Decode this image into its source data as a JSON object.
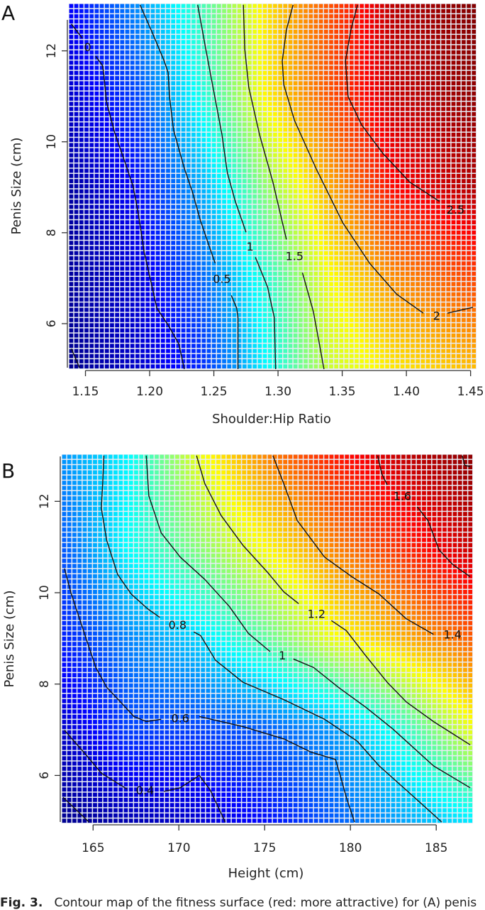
{
  "caption": {
    "fig": "Fig. 3.",
    "text": "Contour map of the fitness surface (red: more attractive) for (A) penis"
  },
  "chart_data": [
    {
      "panel": "A",
      "type": "heatmap",
      "xlabel": "Shoulder:Hip Ratio",
      "ylabel": "Penis Size (cm)",
      "xlim": [
        1.137,
        1.4546
      ],
      "ylim": [
        5.0,
        13.04
      ],
      "xticks": [
        "1.15",
        "1.20",
        "1.25",
        "1.30",
        "1.35",
        "1.40",
        "1.45"
      ],
      "yticks": [
        "6",
        "8",
        "10",
        "12"
      ],
      "color_range": [
        -0.4,
        3.0
      ],
      "colormap": "jet (blue = low, dark red = high)",
      "grid_x": [
        1.137,
        1.19,
        1.24,
        1.29,
        1.34,
        1.39,
        1.455
      ],
      "grid_y": [
        5,
        7,
        9,
        11,
        13
      ],
      "grid_values": [
        [
          -0.35,
          -0.15,
          0.15,
          0.85,
          1.55,
          1.8,
          1.95
        ],
        [
          -0.3,
          -0.1,
          0.35,
          1.0,
          1.7,
          2.1,
          2.35
        ],
        [
          -0.3,
          0.05,
          0.6,
          1.35,
          2.0,
          2.55,
          2.85
        ],
        [
          -0.15,
          0.25,
          0.95,
          1.75,
          2.3,
          2.75,
          2.95
        ],
        [
          0.0,
          0.5,
          1.1,
          1.8,
          2.3,
          2.8,
          3.0
        ]
      ],
      "contours": [
        {
          "level": "0",
          "label_at": [
            1.1517,
            12.09
          ],
          "segments": [
            [
              [
                1.139,
                12.59
              ],
              [
                1.1475,
                12.28
              ]
            ],
            [
              [
                1.158,
                11.88
              ],
              [
                1.1632,
                11.68
              ],
              [
                1.1642,
                11.52
              ],
              [
                1.1663,
                10.89
              ],
              [
                1.1726,
                10.21
              ],
              [
                1.181,
                9.53
              ],
              [
                1.1872,
                9.01
              ],
              [
                1.1914,
                8.38
              ],
              [
                1.1956,
                7.59
              ],
              [
                1.1998,
                7.07
              ],
              [
                1.2056,
                6.34
              ],
              [
                1.2144,
                5.97
              ],
              [
                1.2228,
                5.55
              ],
              [
                1.227,
                5.0
              ]
            ],
            [
              [
                1.139,
                5.45
              ],
              [
                1.1454,
                5.03
              ]
            ]
          ]
        },
        {
          "level": "0.5",
          "label_at": [
            1.2563,
            6.99
          ],
          "segments": [
            [
              [
                1.1925,
                13.01
              ],
              [
                1.2019,
                12.41
              ],
              [
                1.2113,
                11.78
              ],
              [
                1.2144,
                11.52
              ],
              [
                1.2155,
                10.99
              ],
              [
                1.2186,
                10.26
              ],
              [
                1.227,
                9.42
              ],
              [
                1.2333,
                8.9
              ],
              [
                1.2395,
                8.27
              ],
              [
                1.2458,
                7.75
              ],
              [
                1.251,
                7.33
              ]
            ],
            [
              [
                1.2636,
                6.62
              ],
              [
                1.2678,
                6.34
              ],
              [
                1.2688,
                6.13
              ],
              [
                1.2688,
                5.0
              ]
            ]
          ]
        },
        {
          "level": "1",
          "label_at": [
            1.2782,
            7.7
          ],
          "segments": [
            [
              [
                1.2374,
                13.01
              ],
              [
                1.2437,
                12.04
              ],
              [
                1.25,
                11.1
              ],
              [
                1.2563,
                10.16
              ],
              [
                1.2605,
                9.32
              ],
              [
                1.2667,
                8.69
              ],
              [
                1.2751,
                8.01
              ]
            ],
            [
              [
                1.2824,
                7.46
              ],
              [
                1.2918,
                6.81
              ],
              [
                1.2971,
                6.13
              ],
              [
                1.2981,
                5.0
              ]
            ]
          ]
        },
        {
          "level": "1.5",
          "label_at": [
            1.3128,
            7.49
          ],
          "segments": [
            [
              [
                1.273,
                13.01
              ],
              [
                1.2741,
                12.04
              ],
              [
                1.2772,
                11.2
              ],
              [
                1.2856,
                10.16
              ],
              [
                1.296,
                9.11
              ],
              [
                1.3065,
                7.85
              ]
            ],
            [
              [
                1.319,
                7.12
              ],
              [
                1.3274,
                6.28
              ],
              [
                1.3316,
                5.65
              ],
              [
                1.3358,
                5.0
              ]
            ]
          ]
        },
        {
          "level": "2",
          "label_at": [
            1.4236,
            6.18
          ],
          "segments": [
            [
              [
                1.3117,
                13.01
              ],
              [
                1.3065,
                12.46
              ],
              [
                1.3033,
                11.78
              ],
              [
                1.3044,
                11.26
              ],
              [
                1.3128,
                10.47
              ],
              [
                1.3295,
                9.42
              ],
              [
                1.3504,
                8.22
              ],
              [
                1.3713,
                7.33
              ],
              [
                1.3923,
                6.65
              ],
              [
                1.4132,
                6.23
              ]
            ],
            [
              [
                1.432,
                6.23
              ],
              [
                1.4519,
                6.36
              ]
            ]
          ]
        },
        {
          "level": "2.5",
          "label_at": [
            1.4383,
            8.51
          ],
          "segments": [
            [
              [
                1.3619,
                13.01
              ],
              [
                1.3567,
                12.46
              ],
              [
                1.3525,
                11.78
              ],
              [
                1.3546,
                10.99
              ],
              [
                1.3651,
                10.37
              ],
              [
                1.3818,
                9.74
              ],
              [
                1.4027,
                9.11
              ],
              [
                1.4257,
                8.69
              ]
            ]
          ]
        }
      ]
    },
    {
      "panel": "B",
      "type": "heatmap",
      "xlabel": "Height (cm)",
      "ylabel": "Penis Size (cm)",
      "xlim": [
        163.17,
        187.14
      ],
      "ylim": [
        4.95,
        13.03
      ],
      "xticks": [
        "165",
        "170",
        "175",
        "180",
        "185"
      ],
      "yticks": [
        "6",
        "8",
        "10",
        "12"
      ],
      "color_range": [
        0.3,
        1.8
      ],
      "colormap": "jet (blue = low, dark red = high)",
      "grid_x": [
        163,
        167,
        171,
        175,
        179,
        183,
        187.2
      ],
      "grid_y": [
        5,
        7,
        9,
        11,
        13
      ],
      "grid_values": [
        [
          0.32,
          0.37,
          0.42,
          0.5,
          0.62,
          0.73,
          0.84
        ],
        [
          0.4,
          0.58,
          0.58,
          0.62,
          0.71,
          0.92,
          1.22
        ],
        [
          0.52,
          0.68,
          0.8,
          1.0,
          1.22,
          1.35,
          1.48
        ],
        [
          0.6,
          0.87,
          1.06,
          1.24,
          1.42,
          1.55,
          1.7
        ],
        [
          0.7,
          0.85,
          1.2,
          1.41,
          1.57,
          1.7,
          1.78
        ]
      ],
      "contours": [
        {
          "level": "0.4",
          "label_at": [
            168.02,
            5.68
          ],
          "segments": [
            [
              [
                163.33,
                6.99
              ],
              [
                164.52,
                6.48
              ],
              [
                165.48,
                6.05
              ],
              [
                166.98,
                5.7
              ]
            ],
            [
              [
                169.13,
                5.65
              ],
              [
                170.08,
                5.73
              ],
              [
                171.19,
                6.0
              ],
              [
                171.83,
                5.68
              ],
              [
                172.7,
                4.98
              ]
            ],
            [
              [
                163.25,
                5.52
              ],
              [
                164.76,
                4.98
              ]
            ]
          ]
        },
        {
          "level": "0.6",
          "label_at": [
            170.08,
            7.26
          ],
          "segments": [
            [
              [
                163.33,
                10.53
              ],
              [
                163.73,
                9.97
              ],
              [
                164.21,
                9.43
              ],
              [
                164.68,
                8.9
              ],
              [
                165.16,
                8.36
              ],
              [
                165.79,
                7.93
              ],
              [
                166.59,
                7.61
              ],
              [
                167.38,
                7.29
              ],
              [
                168.1,
                7.18
              ],
              [
                168.97,
                7.23
              ]
            ],
            [
              [
                171.19,
                7.29
              ],
              [
                173.73,
                7.07
              ],
              [
                176.11,
                6.8
              ],
              [
                177.7,
                6.51
              ],
              [
                179.13,
                6.35
              ],
              [
                179.44,
                5.95
              ],
              [
                179.76,
                5.52
              ],
              [
                180.24,
                4.98
              ]
            ]
          ]
        },
        {
          "level": "0.8",
          "label_at": [
            169.92,
            9.3
          ],
          "segments": [
            [
              [
                165.63,
                13.0
              ],
              [
                165.56,
                12.39
              ],
              [
                165.48,
                11.85
              ],
              [
                165.79,
                11.15
              ],
              [
                166.43,
                10.4
              ],
              [
                167.22,
                9.97
              ],
              [
                168.17,
                9.65
              ],
              [
                168.89,
                9.46
              ]
            ],
            [
              [
                170.87,
                9.14
              ],
              [
                171.27,
                9.06
              ],
              [
                172.14,
                8.52
              ],
              [
                173.73,
                8.04
              ],
              [
                176.11,
                7.66
              ],
              [
                178.49,
                7.23
              ],
              [
                180.4,
                6.75
              ],
              [
                181.67,
                6.21
              ],
              [
                183.25,
                5.68
              ],
              [
                185.32,
                4.98
              ]
            ]
          ]
        },
        {
          "level": "1",
          "label_at": [
            176.03,
            8.63
          ],
          "segments": [
            [
              [
                168.1,
                13.0
              ],
              [
                168.25,
                12.12
              ],
              [
                168.97,
                11.31
              ],
              [
                170.08,
                10.78
              ],
              [
                171.51,
                10.29
              ],
              [
                172.94,
                9.7
              ],
              [
                174.05,
                9.11
              ],
              [
                175.32,
                8.71
              ]
            ],
            [
              [
                176.67,
                8.55
              ],
              [
                177.86,
                8.36
              ],
              [
                179.29,
                7.93
              ],
              [
                180.87,
                7.5
              ],
              [
                182.46,
                7.02
              ],
              [
                184.84,
                6.21
              ],
              [
                186.98,
                5.73
              ]
            ]
          ]
        },
        {
          "level": "1.2",
          "label_at": [
            178.02,
            9.54
          ],
          "segments": [
            [
              [
                171.03,
                13.0
              ],
              [
                171.51,
                12.39
              ],
              [
                172.46,
                11.69
              ],
              [
                173.73,
                11.04
              ],
              [
                175.16,
                10.45
              ],
              [
                176.11,
                10.02
              ],
              [
                176.98,
                9.76
              ]
            ],
            [
              [
                178.89,
                9.39
              ],
              [
                179.76,
                9.17
              ],
              [
                180.87,
                8.63
              ],
              [
                182.14,
                8.04
              ],
              [
                183.25,
                7.61
              ],
              [
                184.84,
                7.18
              ],
              [
                186.98,
                6.67
              ]
            ]
          ]
        },
        {
          "level": "1.4",
          "label_at": [
            185.95,
            9.09
          ],
          "segments": [
            [
              [
                175.48,
                13.0
              ],
              [
                176.11,
                12.39
              ],
              [
                176.9,
                11.58
              ],
              [
                178.49,
                10.78
              ],
              [
                180.08,
                10.35
              ],
              [
                181.67,
                9.97
              ],
              [
                183.25,
                9.43
              ],
              [
                184.84,
                9.09
              ]
            ]
          ]
        },
        {
          "level": "1.6",
          "label_at": [
            183.02,
            12.12
          ],
          "segments": [
            [
              [
                181.59,
                13.0
              ],
              [
                181.83,
                12.6
              ],
              [
                182.14,
                12.36
              ]
            ],
            [
              [
                183.89,
                11.88
              ],
              [
                184.52,
                11.58
              ],
              [
                185.16,
                10.94
              ],
              [
                185.95,
                10.62
              ],
              [
                186.98,
                10.35
              ]
            ],
            [
              [
                186.51,
                13.0
              ],
              [
                186.67,
                12.79
              ],
              [
                186.98,
                12.76
              ]
            ]
          ]
        }
      ]
    }
  ]
}
